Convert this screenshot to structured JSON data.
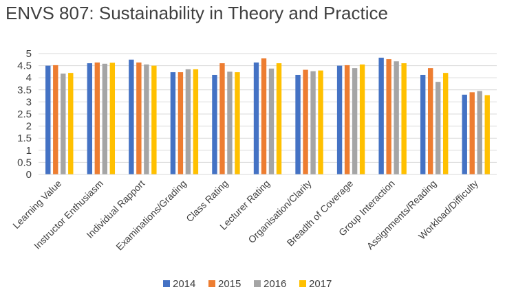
{
  "chart_data": {
    "type": "bar",
    "title": "ENVS 807: Sustainability in Theory and Practice",
    "xlabel": "",
    "ylabel": "",
    "ylim": [
      0,
      5
    ],
    "yticks": [
      "0",
      "0.5",
      "1",
      "1.5",
      "2",
      "2.5",
      "3",
      "3.5",
      "4",
      "4.5",
      "5"
    ],
    "grid": true,
    "legend_position": "bottom",
    "categories": [
      "Learning Value",
      "Instructor Enthusiasm",
      "Individual Rapport",
      "Examinations/Grading",
      "Class Rating",
      "Lecturer Rating",
      "Organisation/Clarity",
      "Breadth of Coverage",
      "Group Interaction",
      "Assignments/Reading",
      "Workload/Difficulty"
    ],
    "series": [
      {
        "name": "2014",
        "color": "#4472C4",
        "values": [
          4.5,
          4.6,
          4.75,
          4.23,
          4.12,
          4.63,
          4.12,
          4.5,
          4.83,
          4.12,
          3.3
        ]
      },
      {
        "name": "2015",
        "color": "#ED7D31",
        "values": [
          4.52,
          4.63,
          4.63,
          4.23,
          4.6,
          4.8,
          4.33,
          4.52,
          4.77,
          4.4,
          3.4
        ]
      },
      {
        "name": "2016",
        "color": "#A5A5A5",
        "values": [
          4.17,
          4.58,
          4.55,
          4.35,
          4.25,
          4.38,
          4.27,
          4.4,
          4.68,
          3.83,
          3.45
        ]
      },
      {
        "name": "2017",
        "color": "#FFC000",
        "values": [
          4.2,
          4.62,
          4.5,
          4.35,
          4.23,
          4.6,
          4.3,
          4.55,
          4.6,
          4.2,
          3.28
        ]
      }
    ]
  }
}
